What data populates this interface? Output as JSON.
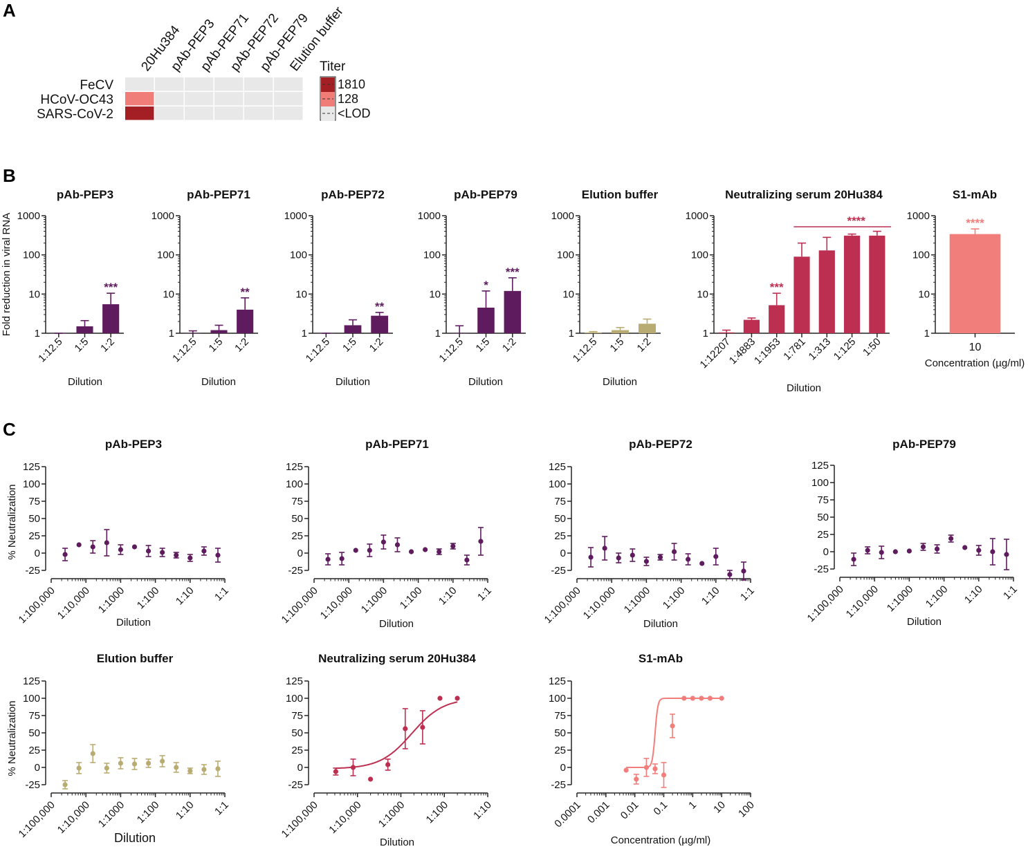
{
  "figure": {
    "panel_labels": [
      "A",
      "B",
      "C"
    ]
  },
  "chart_data": [
    {
      "panel": "A",
      "type": "heatmap",
      "rows": [
        "FeCV",
        "HCoV-OC43",
        "SARS-CoV-2"
      ],
      "columns": [
        "20Hu384",
        "pAb-PEP3",
        "pAb-PEP71",
        "pAb-PEP72",
        "pAb-PEP79",
        "Elution buffer"
      ],
      "values": [
        [
          "<LOD",
          "<LOD",
          "<LOD",
          "<LOD",
          "<LOD",
          "<LOD"
        ],
        [
          "128",
          "<LOD",
          "<LOD",
          "<LOD",
          "<LOD",
          "<LOD"
        ],
        [
          "1810",
          "<LOD",
          "<LOD",
          "<LOD",
          "<LOD",
          "<LOD"
        ]
      ],
      "legend_title": "Titer",
      "legend": [
        {
          "label": "1810",
          "color": "#a31f24"
        },
        {
          "label": "128",
          "color": "#f17d79"
        },
        {
          "label": "<LOD",
          "color": "#e8e8e8"
        }
      ]
    },
    {
      "panel": "B",
      "type": "bar",
      "ylabel": "Fold reduction in viral RNA",
      "yscale": "log",
      "ylim": [
        1,
        1000
      ],
      "yticks": [
        "1",
        "10",
        "100",
        "1000"
      ],
      "subplots": [
        {
          "title": "pAb-PEP3",
          "xlabel": "Dilution",
          "categories": [
            "1:12.5",
            "1:5",
            "1:2"
          ],
          "values": [
            1.0,
            1.5,
            5.5
          ],
          "errors": [
            1.0,
            2.1,
            10.5
          ],
          "significance": [
            "",
            "",
            "***"
          ],
          "color": "#5e1c5e"
        },
        {
          "title": "pAb-PEP71",
          "xlabel": "Dilution",
          "categories": [
            "1:12.5",
            "1:5",
            "1:2"
          ],
          "values": [
            1.0,
            1.2,
            4.0
          ],
          "errors": [
            1.15,
            1.6,
            8.0
          ],
          "significance": [
            "",
            "",
            "**"
          ],
          "color": "#5e1c5e"
        },
        {
          "title": "pAb-PEP72",
          "xlabel": "Dilution",
          "categories": [
            "1:12.5",
            "1:5",
            "1:2"
          ],
          "values": [
            1.0,
            1.6,
            2.8
          ],
          "errors": [
            1.0,
            2.2,
            3.4
          ],
          "significance": [
            "",
            "",
            "**"
          ],
          "color": "#5e1c5e"
        },
        {
          "title": "pAb-PEP79",
          "xlabel": "Dilution",
          "categories": [
            "1:12.5",
            "1:5",
            "1:2"
          ],
          "values": [
            1.0,
            4.5,
            12
          ],
          "errors": [
            1.55,
            12,
            26
          ],
          "significance": [
            "",
            "*",
            "***"
          ],
          "color": "#5e1c5e"
        },
        {
          "title": "Elution buffer",
          "xlabel": "Dilution",
          "categories": [
            "1:12.5",
            "1:5",
            "1:2"
          ],
          "values": [
            1.05,
            1.2,
            1.75
          ],
          "errors": [
            1.1,
            1.4,
            2.3
          ],
          "significance": [
            "",
            "",
            ""
          ],
          "color": "#b8ac72"
        },
        {
          "title": "Neutralizing serum 20Hu384",
          "xlabel": "Dilution",
          "categories": [
            "1:12207",
            "1:4883",
            "1:1953",
            "1:781",
            "1:313",
            "1:125",
            "1:50"
          ],
          "values": [
            1.05,
            2.2,
            5.2,
            90,
            130,
            310,
            310
          ],
          "errors": [
            1.2,
            2.45,
            10.5,
            200,
            280,
            340,
            400
          ],
          "significance": [
            "",
            "",
            "***",
            "",
            "",
            "",
            ""
          ],
          "bracket_label": "****",
          "color": "#bd2f50"
        },
        {
          "title": "S1-mAb",
          "xlabel": "Concentration (µg/ml)",
          "categories": [
            "10"
          ],
          "values": [
            340
          ],
          "errors": [
            460
          ],
          "significance": [
            "****"
          ],
          "color": "#f27e7b"
        }
      ]
    },
    {
      "panel": "C",
      "type": "scatter",
      "ylabel": "% Neutralization",
      "ylim": [
        -25,
        125
      ],
      "yticks": [
        "125",
        "100",
        "75",
        "50",
        "25",
        "0",
        "-25"
      ],
      "subplots": [
        {
          "title": "pAb-PEP3",
          "xlabel": "Dilution",
          "xticks": [
            "1:100,000",
            "1:10,000",
            "1:1000",
            "1:100",
            "1:10",
            "1:1"
          ],
          "xdomain": [
            -5,
            0
          ],
          "x": [
            -4.6,
            -4.2,
            -3.8,
            -3.4,
            -3.0,
            -2.6,
            -2.2,
            -1.8,
            -1.4,
            -1.0,
            -0.6,
            -0.2
          ],
          "y": [
            -2,
            12,
            9,
            15,
            5,
            9,
            3,
            1,
            -3,
            -7,
            3,
            -3
          ],
          "err": [
            9,
            0,
            9,
            19,
            7,
            0,
            8,
            6,
            4,
            5,
            6,
            10
          ],
          "color": "#5e1c5e"
        },
        {
          "title": "pAb-PEP71",
          "xlabel": "Dilution",
          "xticks": [
            "1:100,000",
            "1:10,000",
            "1:1000",
            "1:100",
            "1:10",
            "1:1"
          ],
          "xdomain": [
            -5,
            0
          ],
          "x": [
            -4.6,
            -4.2,
            -3.8,
            -3.4,
            -3.0,
            -2.6,
            -2.2,
            -1.8,
            -1.4,
            -1.0,
            -0.6,
            -0.2
          ],
          "y": [
            -9,
            -8,
            4,
            4,
            16,
            12,
            2,
            5,
            2,
            10,
            -10,
            17
          ],
          "err": [
            8,
            9,
            0,
            9,
            10,
            10,
            0,
            0,
            4,
            4,
            7,
            20
          ],
          "color": "#5e1c5e"
        },
        {
          "title": "pAb-PEP72",
          "xlabel": "Dilution",
          "xticks": [
            "1:100,000",
            "1:10,000",
            "1:1000",
            "1:100",
            "1:10",
            "1:1"
          ],
          "xdomain": [
            -5,
            0
          ],
          "x": [
            -4.6,
            -4.2,
            -3.8,
            -3.4,
            -3.0,
            -2.6,
            -2.2,
            -1.8,
            -1.4,
            -1.0,
            -0.6,
            -0.2
          ],
          "y": [
            -6,
            7,
            -7,
            -3,
            -12,
            -6,
            2,
            -9,
            -15,
            -5,
            -31,
            -26
          ],
          "err": [
            14,
            17,
            7,
            9,
            6,
            4,
            12,
            8,
            0,
            12,
            6,
            13
          ],
          "color": "#5e1c5e"
        },
        {
          "title": "pAb-PEP79",
          "xlabel": "Dilution",
          "xticks": [
            "1:100,000",
            "1:10,000",
            "1:1000",
            "1:100",
            "1:10",
            "1:1"
          ],
          "xdomain": [
            -5,
            0
          ],
          "x": [
            -4.6,
            -4.2,
            -3.8,
            -3.4,
            -3.0,
            -2.6,
            -2.2,
            -1.8,
            -1.4,
            -1.0,
            -0.6,
            -0.2
          ],
          "y": [
            -11,
            2,
            -1,
            0,
            1,
            7,
            4,
            19,
            6,
            2,
            0,
            -4
          ],
          "err": [
            9,
            5,
            9,
            0,
            0,
            5,
            6,
            5,
            0,
            7,
            19,
            22
          ],
          "color": "#5e1c5e"
        },
        {
          "title": "Elution buffer",
          "xlabel": "Dilution",
          "xticks": [
            "1:100,000",
            "1:10,000",
            "1:1000",
            "1:100",
            "1:10",
            "1:1"
          ],
          "xdomain": [
            -5,
            0
          ],
          "x": [
            -4.6,
            -4.2,
            -3.8,
            -3.4,
            -3.0,
            -2.6,
            -2.2,
            -1.8,
            -1.4,
            -1.0,
            -0.6,
            -0.2
          ],
          "y": [
            -25,
            -1,
            20,
            -1,
            6,
            5,
            6,
            9,
            0,
            -5,
            -3,
            -2
          ],
          "err": [
            6,
            8,
            13,
            7,
            8,
            8,
            6,
            8,
            7,
            4,
            7,
            11
          ],
          "color": "#b8ac72"
        },
        {
          "title": "Neutralizing serum 20Hu384",
          "xlabel": "Dilution",
          "xticks": [
            "1:100,000",
            "1:10,000",
            "1:1000",
            "1:100",
            "1:10"
          ],
          "xdomain": [
            -5,
            -1
          ],
          "x": [
            -4.5,
            -4.1,
            -3.7,
            -3.3,
            -2.9,
            -2.5,
            -2.1,
            -1.7
          ],
          "y": [
            -6,
            0,
            -17,
            4,
            56,
            58,
            100,
            100
          ],
          "err": [
            5,
            12,
            0,
            8,
            29,
            24,
            0,
            0
          ],
          "fit": true,
          "color": "#bd2f50"
        },
        {
          "title": "S1-mAb",
          "xlabel": "Concentration (µg/ml)",
          "xticks": [
            "0.0001",
            "0.001",
            "0.01",
            "0.1",
            "1",
            "10",
            "100"
          ],
          "xdomain": [
            -4,
            2
          ],
          "x": [
            -2.3,
            -1.95,
            -1.6,
            -1.3,
            -1.0,
            -0.7,
            -0.3,
            0.0,
            0.3,
            0.6,
            1.0
          ],
          "y": [
            -4,
            -17,
            0,
            -2,
            -11,
            60,
            100,
            100,
            100,
            100,
            100
          ],
          "err": [
            0,
            7,
            13,
            7,
            18,
            17,
            0,
            0,
            0,
            0,
            0
          ],
          "fit": true,
          "color": "#f27e7b"
        }
      ]
    }
  ]
}
